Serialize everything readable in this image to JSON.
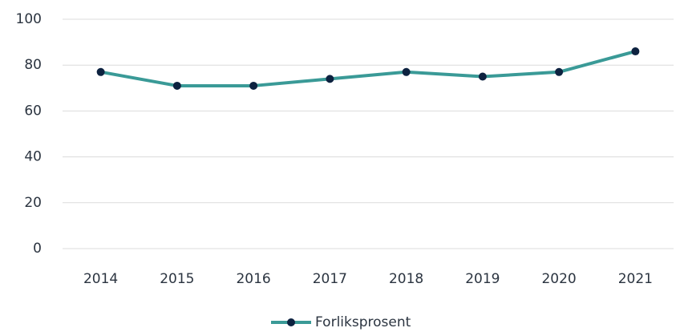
{
  "chart_data": {
    "type": "line",
    "categories": [
      "2014",
      "2015",
      "2016",
      "2017",
      "2018",
      "2019",
      "2020",
      "2021"
    ],
    "series": [
      {
        "name": "Forliksprosent",
        "color": "#3a9a97",
        "marker_color": "#0d2240",
        "values": [
          77,
          71,
          71,
          74,
          77,
          75,
          77,
          86
        ]
      }
    ],
    "ylim": [
      0,
      100
    ],
    "yticks": [
      0,
      20,
      40,
      60,
      80,
      100
    ],
    "grid": true,
    "legend": "bottom"
  }
}
